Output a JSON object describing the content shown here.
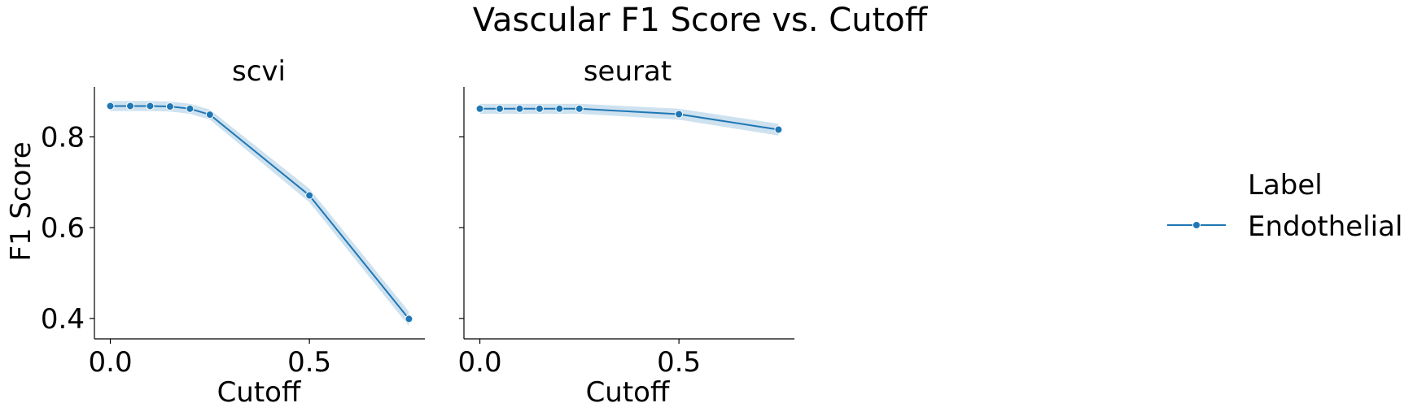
{
  "figure_title": "Vascular F1 Score vs. Cutoff",
  "legend": {
    "title": "Label",
    "entries": [
      {
        "label": "Endothelial"
      }
    ]
  },
  "colors": {
    "series": "#1f77b4",
    "band": "#1f77b4",
    "axis": "#000000"
  },
  "chart_data": [
    {
      "type": "line",
      "title": "scvi",
      "xlabel": "Cutoff",
      "ylabel": "F1 Score",
      "xlim": [
        -0.04,
        0.79
      ],
      "ylim": [
        0.355,
        0.91
      ],
      "xticks": [
        0.0,
        0.5
      ],
      "xtick_labels": [
        "0.0",
        "0.5"
      ],
      "yticks": [
        0.4,
        0.6,
        0.8
      ],
      "ytick_labels": [
        "0.4",
        "0.6",
        "0.8"
      ],
      "grid": false,
      "series": [
        {
          "name": "Endothelial",
          "x": [
            0.0,
            0.05,
            0.1,
            0.15,
            0.2,
            0.25,
            0.5,
            0.75
          ],
          "y": [
            0.868,
            0.868,
            0.868,
            0.867,
            0.862,
            0.849,
            0.671,
            0.399
          ],
          "ci_low": [
            0.857,
            0.857,
            0.857,
            0.856,
            0.851,
            0.838,
            0.656,
            0.383
          ],
          "ci_high": [
            0.879,
            0.879,
            0.879,
            0.878,
            0.873,
            0.86,
            0.686,
            0.415
          ]
        }
      ]
    },
    {
      "type": "line",
      "title": "seurat",
      "xlabel": "Cutoff",
      "ylabel": "",
      "xlim": [
        -0.04,
        0.79
      ],
      "ylim": [
        0.355,
        0.91
      ],
      "xticks": [
        0.0,
        0.5
      ],
      "xtick_labels": [
        "0.0",
        "0.5"
      ],
      "yticks": [
        0.4,
        0.6,
        0.8
      ],
      "ytick_labels": [],
      "grid": false,
      "series": [
        {
          "name": "Endothelial",
          "x": [
            0.0,
            0.05,
            0.1,
            0.15,
            0.2,
            0.25,
            0.5,
            0.75
          ],
          "y": [
            0.862,
            0.862,
            0.862,
            0.862,
            0.862,
            0.862,
            0.85,
            0.816
          ],
          "ci_low": [
            0.851,
            0.851,
            0.851,
            0.851,
            0.851,
            0.851,
            0.838,
            0.803
          ],
          "ci_high": [
            0.873,
            0.873,
            0.873,
            0.873,
            0.873,
            0.873,
            0.862,
            0.829
          ]
        }
      ]
    }
  ]
}
